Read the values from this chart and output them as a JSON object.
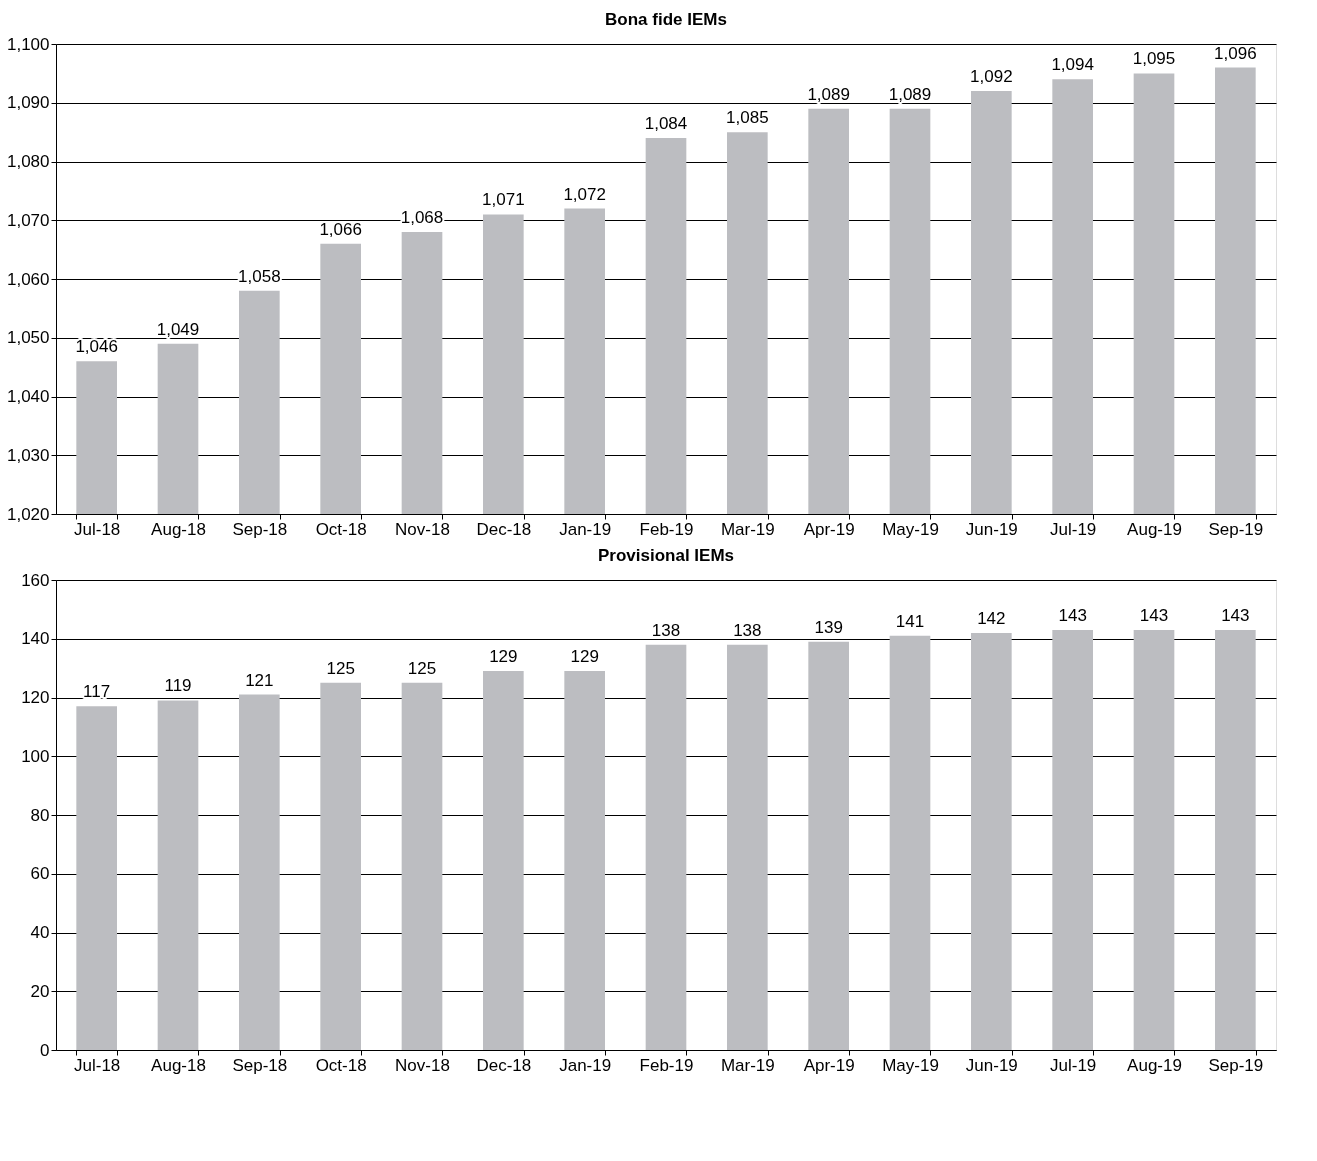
{
  "chart_data": [
    {
      "type": "bar",
      "title": "Bona fide IEMs",
      "categories": [
        "Jul-18",
        "Aug-18",
        "Sep-18",
        "Oct-18",
        "Nov-18",
        "Dec-18",
        "Jan-19",
        "Feb-19",
        "Mar-19",
        "Apr-19",
        "May-19",
        "Jun-19",
        "Jul-19",
        "Aug-19",
        "Sep-19"
      ],
      "values": [
        1046,
        1049,
        1058,
        1066,
        1068,
        1071,
        1072,
        1084,
        1085,
        1089,
        1089,
        1092,
        1094,
        1095,
        1096
      ],
      "value_labels": [
        "1,046",
        "1,049",
        "1,058",
        "1,066",
        "1,068",
        "1,071",
        "1,072",
        "1,084",
        "1,085",
        "1,089",
        "1,089",
        "1,092",
        "1,094",
        "1,095",
        "1,096"
      ],
      "color": "#bcbdc1",
      "ylim": [
        1020,
        1100
      ],
      "yticks": [
        {
          "value": 1020,
          "label": "1,020"
        },
        {
          "value": 1030,
          "label": "1,030"
        },
        {
          "value": 1040,
          "label": "1,040"
        },
        {
          "value": 1050,
          "label": "1,050"
        },
        {
          "value": 1060,
          "label": "1,060"
        },
        {
          "value": 1070,
          "label": "1,070"
        },
        {
          "value": 1080,
          "label": "1,080"
        },
        {
          "value": 1090,
          "label": "1,090"
        },
        {
          "value": 1100,
          "label": "1,100"
        }
      ],
      "grid": "y"
    },
    {
      "type": "bar",
      "title": "Provisional IEMs",
      "categories": [
        "Jul-18",
        "Aug-18",
        "Sep-18",
        "Oct-18",
        "Nov-18",
        "Dec-18",
        "Jan-19",
        "Feb-19",
        "Mar-19",
        "Apr-19",
        "May-19",
        "Jun-19",
        "Jul-19",
        "Aug-19",
        "Sep-19"
      ],
      "values": [
        117,
        119,
        121,
        125,
        125,
        129,
        129,
        138,
        138,
        139,
        141,
        142,
        143,
        143,
        143
      ],
      "data_labels": true,
      "color": "#bcbdc1",
      "ylim": [
        0,
        160
      ],
      "yticks": [
        0,
        20,
        40,
        60,
        80,
        100,
        120,
        140,
        160
      ],
      "grid": "y"
    }
  ]
}
